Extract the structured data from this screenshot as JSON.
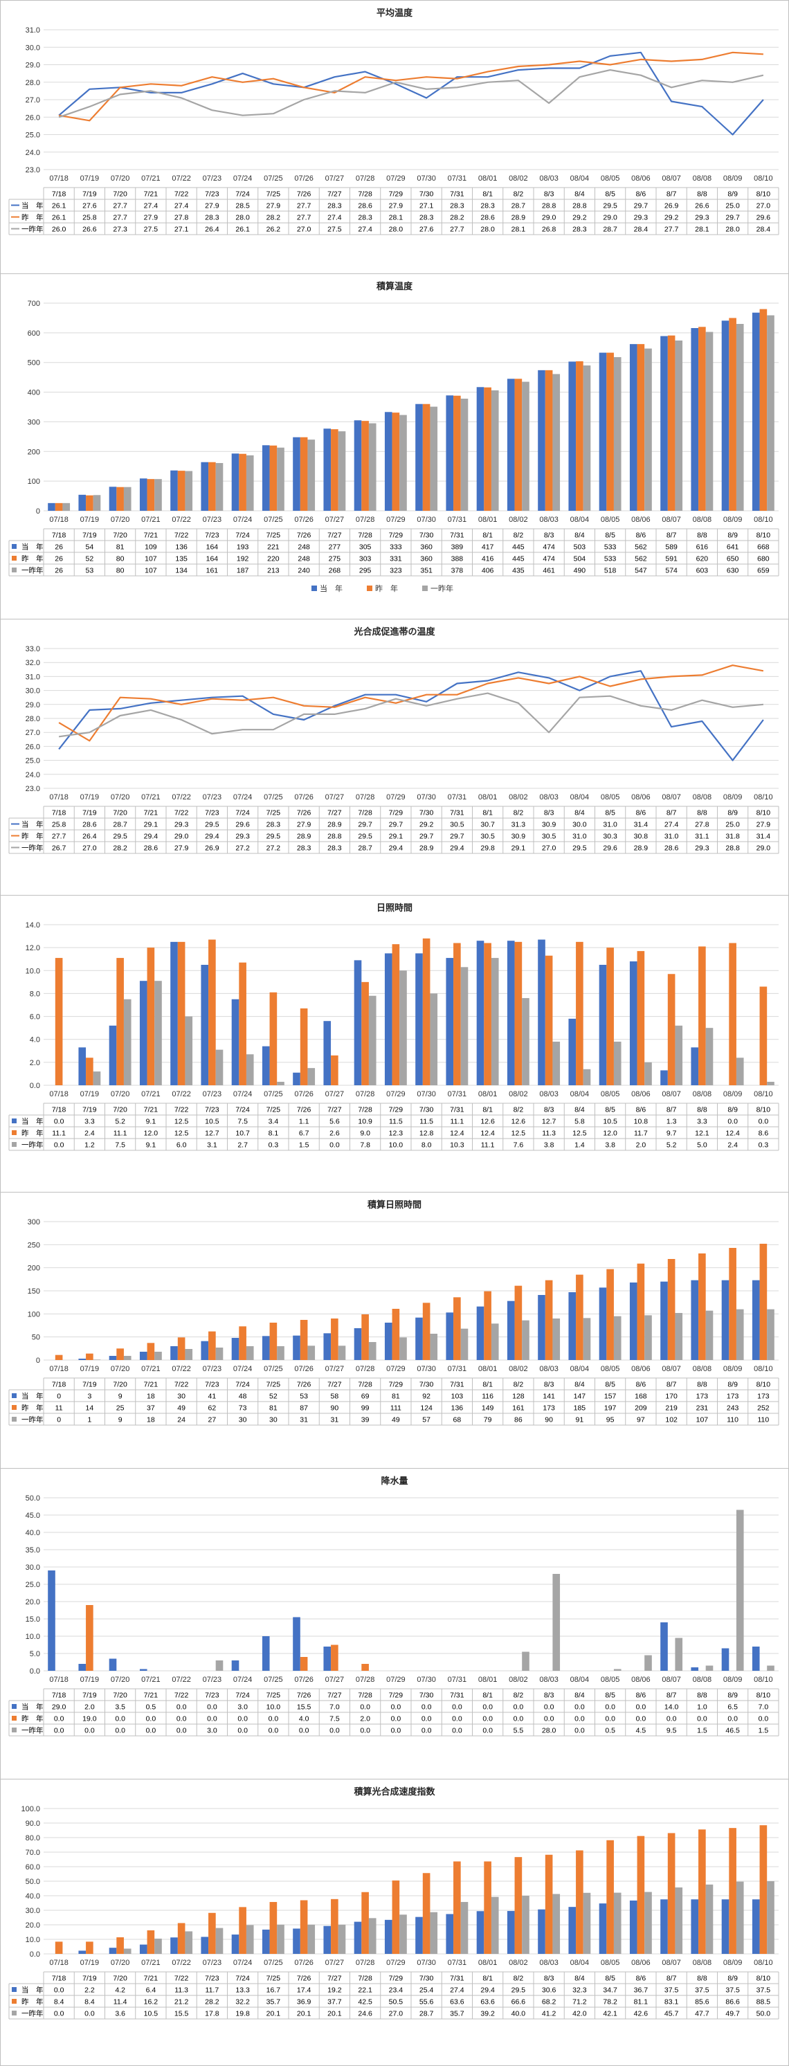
{
  "chart_data": [
    {
      "type": "line",
      "title": "平均温度",
      "categories": [
        "07/18",
        "07/19",
        "07/20",
        "07/21",
        "07/22",
        "07/23",
        "07/24",
        "07/25",
        "07/26",
        "07/27",
        "07/28",
        "07/29",
        "07/30",
        "07/31",
        "08/01",
        "08/02",
        "08/03",
        "08/04",
        "08/05",
        "08/06",
        "08/07",
        "08/08",
        "08/09",
        "08/10"
      ],
      "table_header": [
        "7/18",
        "7/19",
        "7/20",
        "7/21",
        "7/22",
        "7/23",
        "7/24",
        "7/25",
        "7/26",
        "7/27",
        "7/28",
        "7/29",
        "7/30",
        "7/31",
        "8/1",
        "8/2",
        "8/3",
        "8/4",
        "8/5",
        "8/6",
        "8/7",
        "8/8",
        "8/9",
        "8/10"
      ],
      "ylim": [
        23.0,
        31.0
      ],
      "ystep": 1,
      "decimals": 1,
      "legend_position": "none",
      "series": [
        {
          "name": "当　年",
          "color": "#4472c4",
          "values": [
            26.1,
            27.6,
            27.7,
            27.4,
            27.4,
            27.9,
            28.5,
            27.9,
            27.7,
            28.3,
            28.6,
            27.9,
            27.1,
            28.3,
            28.3,
            28.7,
            28.8,
            28.8,
            29.5,
            29.7,
            26.9,
            26.6,
            25.0,
            27.0
          ]
        },
        {
          "name": "昨　年",
          "color": "#ed7d31",
          "values": [
            26.1,
            25.8,
            27.7,
            27.9,
            27.8,
            28.3,
            28.0,
            28.2,
            27.7,
            27.4,
            28.3,
            28.1,
            28.3,
            28.2,
            28.6,
            28.9,
            29.0,
            29.2,
            29.0,
            29.3,
            29.2,
            29.3,
            29.7,
            29.6
          ]
        },
        {
          "name": "一昨年",
          "color": "#a5a5a5",
          "values": [
            26.0,
            26.6,
            27.3,
            27.5,
            27.1,
            26.4,
            26.1,
            26.2,
            27.0,
            27.5,
            27.4,
            28.0,
            27.6,
            27.7,
            28.0,
            28.1,
            26.8,
            28.3,
            28.7,
            28.4,
            27.7,
            28.1,
            28.0,
            28.4
          ]
        }
      ]
    },
    {
      "type": "bar",
      "title": "積算温度",
      "categories": [
        "07/18",
        "07/19",
        "07/20",
        "07/21",
        "07/22",
        "07/23",
        "07/24",
        "07/25",
        "07/26",
        "07/27",
        "07/28",
        "07/29",
        "07/30",
        "07/31",
        "08/01",
        "08/02",
        "08/03",
        "08/04",
        "08/05",
        "08/06",
        "08/07",
        "08/08",
        "08/09",
        "08/10"
      ],
      "table_header": [
        "7/18",
        "7/19",
        "7/20",
        "7/21",
        "7/22",
        "7/23",
        "7/24",
        "7/25",
        "7/26",
        "7/27",
        "7/28",
        "7/29",
        "7/30",
        "7/31",
        "8/1",
        "8/2",
        "8/3",
        "8/4",
        "8/5",
        "8/6",
        "8/7",
        "8/8",
        "8/9",
        "8/10"
      ],
      "ylim": [
        0,
        700
      ],
      "ystep": 100,
      "decimals": 0,
      "legend_position": "bottom",
      "series": [
        {
          "name": "当　年",
          "color": "#4472c4",
          "values": [
            26,
            54,
            81,
            109,
            136,
            164,
            193,
            221,
            248,
            277,
            305,
            333,
            360,
            389,
            417,
            445,
            474,
            503,
            533,
            562,
            589,
            616,
            641,
            668
          ]
        },
        {
          "name": "昨　年",
          "color": "#ed7d31",
          "values": [
            26,
            52,
            80,
            107,
            135,
            164,
            192,
            220,
            248,
            275,
            303,
            331,
            360,
            388,
            416,
            445,
            474,
            504,
            533,
            562,
            591,
            620,
            650,
            680
          ]
        },
        {
          "name": "一昨年",
          "color": "#a5a5a5",
          "values": [
            26,
            53,
            80,
            107,
            134,
            161,
            187,
            213,
            240,
            268,
            295,
            323,
            351,
            378,
            406,
            435,
            461,
            490,
            518,
            547,
            574,
            603,
            630,
            659
          ]
        }
      ]
    },
    {
      "type": "line",
      "title": "光合成促進帯の温度",
      "categories": [
        "07/18",
        "07/19",
        "07/20",
        "07/21",
        "07/22",
        "07/23",
        "07/24",
        "07/25",
        "07/26",
        "07/27",
        "07/28",
        "07/29",
        "07/30",
        "07/31",
        "08/01",
        "08/02",
        "08/03",
        "08/04",
        "08/05",
        "08/06",
        "08/07",
        "08/08",
        "08/09",
        "08/10"
      ],
      "table_header": [
        "7/18",
        "7/19",
        "7/20",
        "7/21",
        "7/22",
        "7/23",
        "7/24",
        "7/25",
        "7/26",
        "7/27",
        "7/28",
        "7/29",
        "7/30",
        "7/31",
        "8/1",
        "8/2",
        "8/3",
        "8/4",
        "8/5",
        "8/6",
        "8/7",
        "8/8",
        "8/9",
        "8/10"
      ],
      "ylim": [
        23.0,
        33.0
      ],
      "ystep": 1,
      "decimals": 1,
      "legend_position": "none",
      "series": [
        {
          "name": "当　年",
          "color": "#4472c4",
          "values": [
            25.8,
            28.6,
            28.7,
            29.1,
            29.3,
            29.5,
            29.6,
            28.3,
            27.9,
            28.9,
            29.7,
            29.7,
            29.2,
            30.5,
            30.7,
            31.3,
            30.9,
            30.0,
            31.0,
            31.4,
            27.4,
            27.8,
            25.0,
            27.9
          ]
        },
        {
          "name": "昨　年",
          "color": "#ed7d31",
          "values": [
            27.7,
            26.4,
            29.5,
            29.4,
            29.0,
            29.4,
            29.3,
            29.5,
            28.9,
            28.8,
            29.5,
            29.1,
            29.7,
            29.7,
            30.5,
            30.9,
            30.5,
            31.0,
            30.3,
            30.8,
            31.0,
            31.1,
            31.8,
            31.4
          ]
        },
        {
          "name": "一昨年",
          "color": "#a5a5a5",
          "values": [
            26.7,
            27.0,
            28.2,
            28.6,
            27.9,
            26.9,
            27.2,
            27.2,
            28.3,
            28.3,
            28.7,
            29.4,
            28.9,
            29.4,
            29.8,
            29.1,
            27.0,
            29.5,
            29.6,
            28.9,
            28.6,
            29.3,
            28.8,
            29.0
          ]
        }
      ]
    },
    {
      "type": "bar",
      "title": "日照時間",
      "categories": [
        "07/18",
        "07/19",
        "07/20",
        "07/21",
        "07/22",
        "07/23",
        "07/24",
        "07/25",
        "07/26",
        "07/27",
        "07/28",
        "07/29",
        "07/30",
        "07/31",
        "08/01",
        "08/02",
        "08/03",
        "08/04",
        "08/05",
        "08/06",
        "08/07",
        "08/08",
        "08/09",
        "08/10"
      ],
      "table_header": [
        "7/18",
        "7/19",
        "7/20",
        "7/21",
        "7/22",
        "7/23",
        "7/24",
        "7/25",
        "7/26",
        "7/27",
        "7/28",
        "7/29",
        "7/30",
        "7/31",
        "8/1",
        "8/2",
        "8/3",
        "8/4",
        "8/5",
        "8/6",
        "8/7",
        "8/8",
        "8/9",
        "8/10"
      ],
      "ylim": [
        0,
        14.0
      ],
      "ystep": 2,
      "decimals": 1,
      "legend_position": "none",
      "series": [
        {
          "name": "当　年",
          "color": "#4472c4",
          "values": [
            0.0,
            3.3,
            5.2,
            9.1,
            12.5,
            10.5,
            7.5,
            3.4,
            1.1,
            5.6,
            10.9,
            11.5,
            11.5,
            11.1,
            12.6,
            12.6,
            12.7,
            5.8,
            10.5,
            10.8,
            1.3,
            3.3,
            0.0,
            0.0
          ]
        },
        {
          "name": "昨　年",
          "color": "#ed7d31",
          "values": [
            11.1,
            2.4,
            11.1,
            12.0,
            12.5,
            12.7,
            10.7,
            8.1,
            6.7,
            2.6,
            9.0,
            12.3,
            12.8,
            12.4,
            12.4,
            12.5,
            11.3,
            12.5,
            12.0,
            11.7,
            9.7,
            12.1,
            12.4,
            8.6
          ]
        },
        {
          "name": "一昨年",
          "color": "#a5a5a5",
          "values": [
            0.0,
            1.2,
            7.5,
            9.1,
            6.0,
            3.1,
            2.7,
            0.3,
            1.5,
            0.0,
            7.8,
            10.0,
            8.0,
            10.3,
            11.1,
            7.6,
            3.8,
            1.4,
            3.8,
            2.0,
            5.2,
            5.0,
            2.4,
            0.3
          ]
        }
      ]
    },
    {
      "type": "bar",
      "title": "積算日照時間",
      "categories": [
        "07/18",
        "07/19",
        "07/20",
        "07/21",
        "07/22",
        "07/23",
        "07/24",
        "07/25",
        "07/26",
        "07/27",
        "07/28",
        "07/29",
        "07/30",
        "07/31",
        "08/01",
        "08/02",
        "08/03",
        "08/04",
        "08/05",
        "08/06",
        "08/07",
        "08/08",
        "08/09",
        "08/10"
      ],
      "table_header": [
        "7/18",
        "7/19",
        "7/20",
        "7/21",
        "7/22",
        "7/23",
        "7/24",
        "7/25",
        "7/26",
        "7/27",
        "7/28",
        "7/29",
        "7/30",
        "7/31",
        "8/1",
        "8/2",
        "8/3",
        "8/4",
        "8/5",
        "8/6",
        "8/7",
        "8/8",
        "8/9",
        "8/10"
      ],
      "ylim": [
        0,
        300
      ],
      "ystep": 50,
      "decimals": 0,
      "legend_position": "none",
      "series": [
        {
          "name": "当　年",
          "color": "#4472c4",
          "values": [
            0,
            3,
            9,
            18,
            30,
            41,
            48,
            52,
            53,
            58,
            69,
            81,
            92,
            103,
            116,
            128,
            141,
            147,
            157,
            168,
            170,
            173,
            173,
            173
          ]
        },
        {
          "name": "昨　年",
          "color": "#ed7d31",
          "values": [
            11,
            14,
            25,
            37,
            49,
            62,
            73,
            81,
            87,
            90,
            99,
            111,
            124,
            136,
            149,
            161,
            173,
            185,
            197,
            209,
            219,
            231,
            243,
            252
          ]
        },
        {
          "name": "一昨年",
          "color": "#a5a5a5",
          "values": [
            0,
            1,
            9,
            18,
            24,
            27,
            30,
            30,
            31,
            31,
            39,
            49,
            57,
            68,
            79,
            86,
            90,
            91,
            95,
            97,
            102,
            107,
            110,
            110
          ]
        }
      ]
    },
    {
      "type": "bar",
      "title": "降水量",
      "categories": [
        "07/18",
        "07/19",
        "07/20",
        "07/21",
        "07/22",
        "07/23",
        "07/24",
        "07/25",
        "07/26",
        "07/27",
        "07/28",
        "07/29",
        "07/30",
        "07/31",
        "08/01",
        "08/02",
        "08/03",
        "08/04",
        "08/05",
        "08/06",
        "08/07",
        "08/08",
        "08/09",
        "08/10"
      ],
      "table_header": [
        "7/18",
        "7/19",
        "7/20",
        "7/21",
        "7/22",
        "7/23",
        "7/24",
        "7/25",
        "7/26",
        "7/27",
        "7/28",
        "7/29",
        "7/30",
        "7/31",
        "8/1",
        "8/2",
        "8/3",
        "8/4",
        "8/5",
        "8/6",
        "8/7",
        "8/8",
        "8/9",
        "8/10"
      ],
      "ylim": [
        0,
        50.0
      ],
      "ystep": 5,
      "decimals": 1,
      "legend_position": "none",
      "series": [
        {
          "name": "当　年",
          "color": "#4472c4",
          "values": [
            29.0,
            2.0,
            3.5,
            0.5,
            0.0,
            0.0,
            3.0,
            10.0,
            15.5,
            7.0,
            0.0,
            0.0,
            0.0,
            0.0,
            0.0,
            0.0,
            0.0,
            0.0,
            0.0,
            0.0,
            14.0,
            1.0,
            6.5,
            7.0
          ]
        },
        {
          "name": "昨　年",
          "color": "#ed7d31",
          "values": [
            0.0,
            19.0,
            0.0,
            0.0,
            0.0,
            0.0,
            0.0,
            0.0,
            4.0,
            7.5,
            2.0,
            0.0,
            0.0,
            0.0,
            0.0,
            0.0,
            0.0,
            0.0,
            0.0,
            0.0,
            0.0,
            0.0,
            0.0,
            0.0
          ]
        },
        {
          "name": "一昨年",
          "color": "#a5a5a5",
          "values": [
            0.0,
            0.0,
            0.0,
            0.0,
            0.0,
            3.0,
            0.0,
            0.0,
            0.0,
            0.0,
            0.0,
            0.0,
            0.0,
            0.0,
            0.0,
            5.5,
            28.0,
            0.0,
            0.5,
            4.5,
            9.5,
            1.5,
            46.5,
            1.5
          ]
        }
      ]
    },
    {
      "type": "bar",
      "title": "積算光合成速度指数",
      "categories": [
        "07/18",
        "07/19",
        "07/20",
        "07/21",
        "07/22",
        "07/23",
        "07/24",
        "07/25",
        "07/26",
        "07/27",
        "07/28",
        "07/29",
        "07/30",
        "07/31",
        "08/01",
        "08/02",
        "08/03",
        "08/04",
        "08/05",
        "08/06",
        "08/07",
        "08/08",
        "08/09",
        "08/10"
      ],
      "table_header": [
        "7/18",
        "7/19",
        "7/20",
        "7/21",
        "7/22",
        "7/23",
        "7/24",
        "7/25",
        "7/26",
        "7/27",
        "7/28",
        "7/29",
        "7/30",
        "7/31",
        "8/1",
        "8/2",
        "8/3",
        "8/4",
        "8/5",
        "8/6",
        "8/7",
        "8/8",
        "8/9",
        "8/10"
      ],
      "ylim": [
        0,
        100.0
      ],
      "ystep": 10,
      "decimals": 1,
      "legend_position": "none",
      "series": [
        {
          "name": "当　年",
          "color": "#4472c4",
          "values": [
            0.0,
            2.2,
            4.2,
            6.4,
            11.3,
            11.7,
            13.3,
            16.7,
            17.4,
            19.2,
            22.1,
            23.4,
            25.4,
            27.4,
            29.4,
            29.5,
            30.6,
            32.3,
            34.7,
            36.7,
            37.5,
            37.5,
            37.5,
            37.5
          ]
        },
        {
          "name": "昨　年",
          "color": "#ed7d31",
          "values": [
            8.4,
            8.4,
            11.4,
            16.2,
            21.2,
            28.2,
            32.2,
            35.7,
            36.9,
            37.7,
            42.5,
            50.5,
            55.6,
            63.6,
            63.6,
            66.6,
            68.2,
            71.2,
            78.2,
            81.1,
            83.1,
            85.6,
            86.6,
            88.5
          ]
        },
        {
          "name": "一昨年",
          "color": "#a5a5a5",
          "values": [
            0.0,
            0.0,
            3.6,
            10.5,
            15.5,
            17.8,
            19.8,
            20.1,
            20.1,
            20.1,
            24.6,
            27.0,
            28.7,
            35.7,
            39.2,
            40.0,
            41.2,
            42.0,
            42.1,
            42.6,
            45.7,
            47.7,
            49.7,
            50.0
          ]
        }
      ]
    }
  ]
}
